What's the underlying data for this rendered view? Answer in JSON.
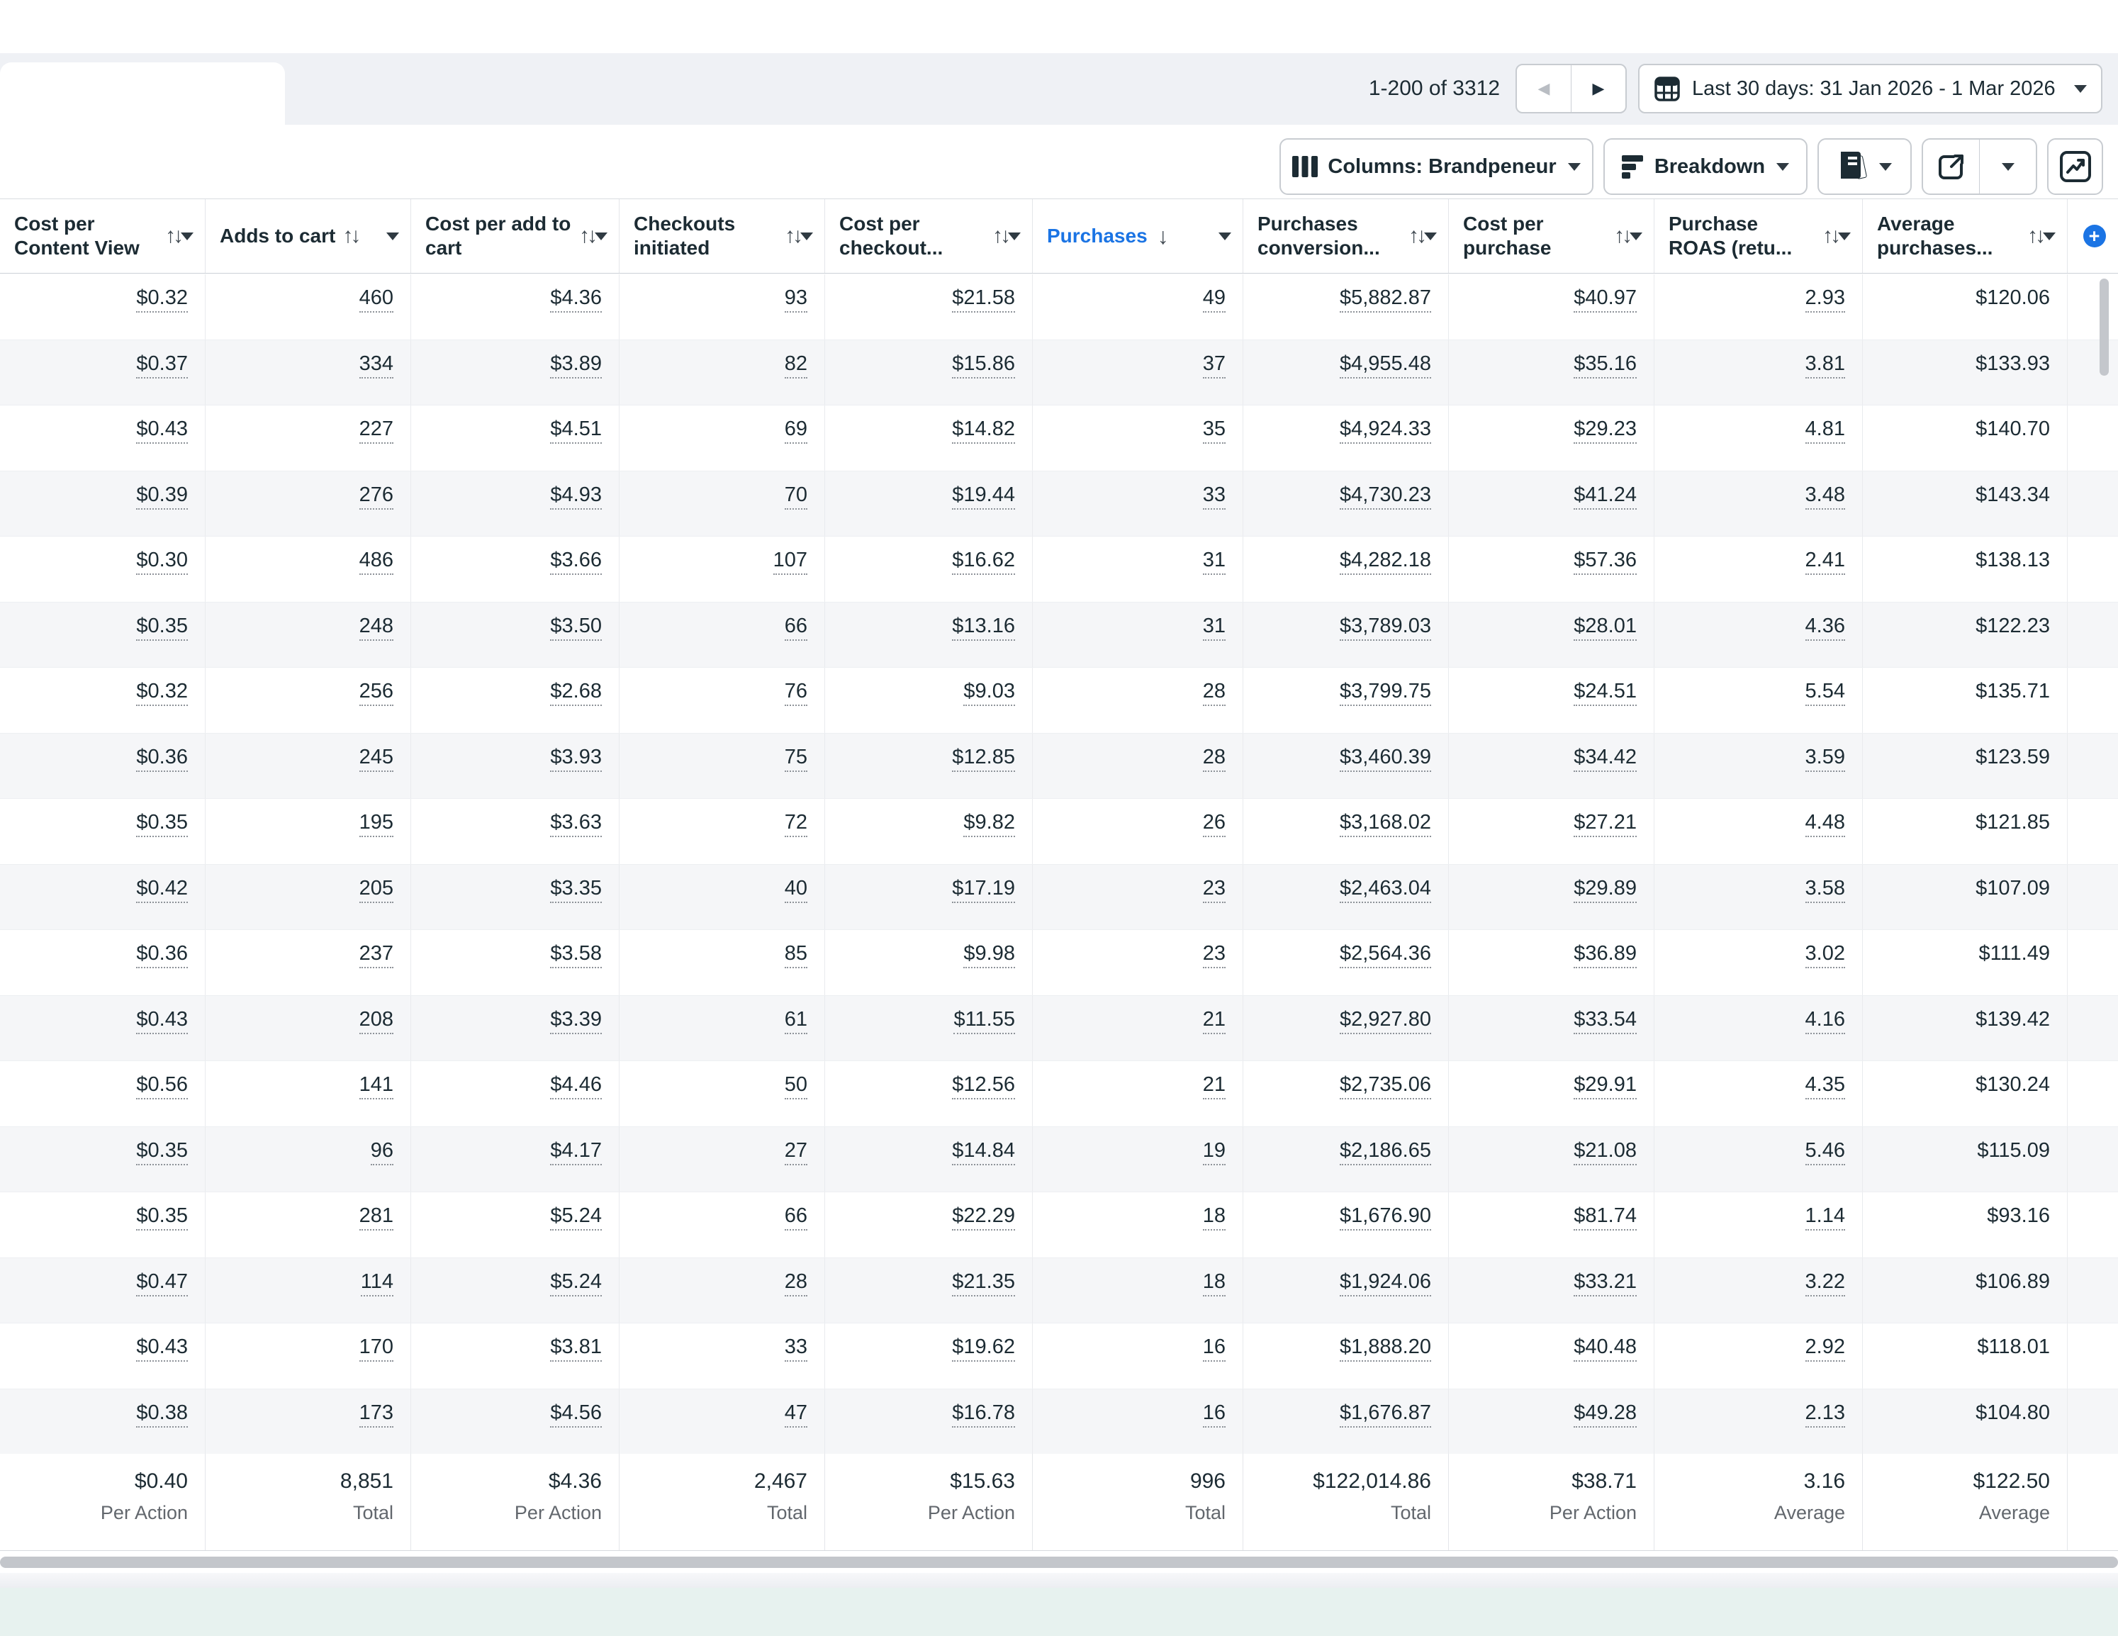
{
  "topbar": {
    "pagination": "1-200 of 3312",
    "date_range": "Last 30 days: 31 Jan 2026 - 1 Mar 2026"
  },
  "toolbar": {
    "columns_label": "Columns: Brandpeneur",
    "breakdown_label": "Breakdown"
  },
  "icons": {
    "prev": "◀",
    "next": "▶",
    "sort_both": "↑↓",
    "sort_desc": "↓",
    "add": "+"
  },
  "colors": {
    "accent_blue": "#1b74e4",
    "row_alt": "#f5f6f8",
    "teal_banner": "#e7f2ef",
    "scrollbar_gray": "#c3c6cb"
  },
  "table": {
    "columns": [
      {
        "label": "Cost per Content View",
        "sort": "both",
        "active": false,
        "underline": true
      },
      {
        "label": "Adds to cart",
        "sort": "both",
        "active": false,
        "underline": true
      },
      {
        "label": "Cost per add to cart",
        "sort": "both",
        "active": false,
        "underline": true
      },
      {
        "label": "Checkouts initiated",
        "sort": "both",
        "active": false,
        "underline": true
      },
      {
        "label": "Cost per checkout...",
        "sort": "both",
        "active": false,
        "underline": true
      },
      {
        "label": "Purchases",
        "sort": "desc",
        "active": true,
        "underline": true
      },
      {
        "label": "Purchases conversion...",
        "sort": "both",
        "active": false,
        "underline": true
      },
      {
        "label": "Cost per purchase",
        "sort": "both",
        "active": false,
        "underline": true
      },
      {
        "label": "Purchase ROAS (retu...",
        "sort": "both",
        "active": false,
        "underline": true
      },
      {
        "label": "Average purchases...",
        "sort": "both",
        "active": false,
        "underline": false
      }
    ],
    "rows": [
      [
        "$0.32",
        "460",
        "$4.36",
        "93",
        "$21.58",
        "49",
        "$5,882.87",
        "$40.97",
        "2.93",
        "$120.06"
      ],
      [
        "$0.37",
        "334",
        "$3.89",
        "82",
        "$15.86",
        "37",
        "$4,955.48",
        "$35.16",
        "3.81",
        "$133.93"
      ],
      [
        "$0.43",
        "227",
        "$4.51",
        "69",
        "$14.82",
        "35",
        "$4,924.33",
        "$29.23",
        "4.81",
        "$140.70"
      ],
      [
        "$0.39",
        "276",
        "$4.93",
        "70",
        "$19.44",
        "33",
        "$4,730.23",
        "$41.24",
        "3.48",
        "$143.34"
      ],
      [
        "$0.30",
        "486",
        "$3.66",
        "107",
        "$16.62",
        "31",
        "$4,282.18",
        "$57.36",
        "2.41",
        "$138.13"
      ],
      [
        "$0.35",
        "248",
        "$3.50",
        "66",
        "$13.16",
        "31",
        "$3,789.03",
        "$28.01",
        "4.36",
        "$122.23"
      ],
      [
        "$0.32",
        "256",
        "$2.68",
        "76",
        "$9.03",
        "28",
        "$3,799.75",
        "$24.51",
        "5.54",
        "$135.71"
      ],
      [
        "$0.36",
        "245",
        "$3.93",
        "75",
        "$12.85",
        "28",
        "$3,460.39",
        "$34.42",
        "3.59",
        "$123.59"
      ],
      [
        "$0.35",
        "195",
        "$3.63",
        "72",
        "$9.82",
        "26",
        "$3,168.02",
        "$27.21",
        "4.48",
        "$121.85"
      ],
      [
        "$0.42",
        "205",
        "$3.35",
        "40",
        "$17.19",
        "23",
        "$2,463.04",
        "$29.89",
        "3.58",
        "$107.09"
      ],
      [
        "$0.36",
        "237",
        "$3.58",
        "85",
        "$9.98",
        "23",
        "$2,564.36",
        "$36.89",
        "3.02",
        "$111.49"
      ],
      [
        "$0.43",
        "208",
        "$3.39",
        "61",
        "$11.55",
        "21",
        "$2,927.80",
        "$33.54",
        "4.16",
        "$139.42"
      ],
      [
        "$0.56",
        "141",
        "$4.46",
        "50",
        "$12.56",
        "21",
        "$2,735.06",
        "$29.91",
        "4.35",
        "$130.24"
      ],
      [
        "$0.35",
        "96",
        "$4.17",
        "27",
        "$14.84",
        "19",
        "$2,186.65",
        "$21.08",
        "5.46",
        "$115.09"
      ],
      [
        "$0.35",
        "281",
        "$5.24",
        "66",
        "$22.29",
        "18",
        "$1,676.90",
        "$81.74",
        "1.14",
        "$93.16"
      ],
      [
        "$0.47",
        "114",
        "$5.24",
        "28",
        "$21.35",
        "18",
        "$1,924.06",
        "$33.21",
        "3.22",
        "$106.89"
      ],
      [
        "$0.43",
        "170",
        "$3.81",
        "33",
        "$19.62",
        "16",
        "$1,888.20",
        "$40.48",
        "2.92",
        "$118.01"
      ],
      [
        "$0.38",
        "173",
        "$4.56",
        "47",
        "$16.78",
        "16",
        "$1,676.87",
        "$49.28",
        "2.13",
        "$104.80"
      ]
    ],
    "totals": [
      {
        "value": "$0.40",
        "label": "Per Action"
      },
      {
        "value": "8,851",
        "label": "Total"
      },
      {
        "value": "$4.36",
        "label": "Per Action"
      },
      {
        "value": "2,467",
        "label": "Total"
      },
      {
        "value": "$15.63",
        "label": "Per Action"
      },
      {
        "value": "996",
        "label": "Total"
      },
      {
        "value": "$122,014.86",
        "label": "Total"
      },
      {
        "value": "$38.71",
        "label": "Per Action"
      },
      {
        "value": "3.16",
        "label": "Average"
      },
      {
        "value": "$122.50",
        "label": "Average"
      }
    ]
  }
}
